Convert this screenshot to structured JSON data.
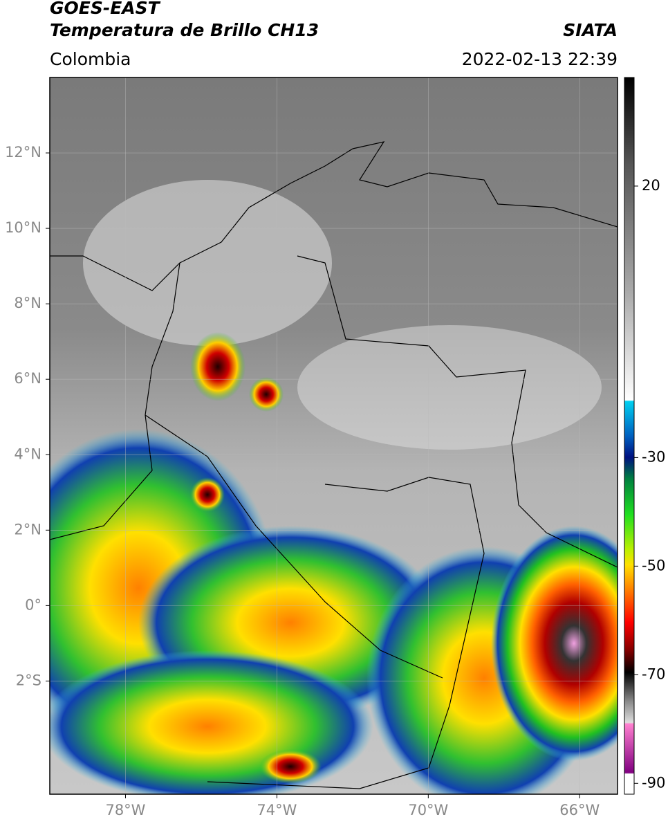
{
  "header": {
    "satellite": "GOES-EAST",
    "product": "Temperatura de Brillo CH13",
    "region": "Colombia",
    "source": "SIATA",
    "datetime": "2022-02-13 22:39"
  },
  "map": {
    "xlim": [
      -80,
      -65
    ],
    "ylim": [
      -5,
      14
    ],
    "xticks": [
      {
        "value": -78,
        "label": "78°W"
      },
      {
        "value": -74,
        "label": "74°W"
      },
      {
        "value": -70,
        "label": "70°W"
      },
      {
        "value": -66,
        "label": "66°W"
      }
    ],
    "yticks": [
      {
        "value": 12,
        "label": "12°N"
      },
      {
        "value": 10,
        "label": "10°N"
      },
      {
        "value": 8,
        "label": "8°N"
      },
      {
        "value": 6,
        "label": "6°N"
      },
      {
        "value": 4,
        "label": "4°N"
      },
      {
        "value": 2,
        "label": "2°N"
      },
      {
        "value": 0,
        "label": "0°"
      },
      {
        "value": -2,
        "label": "2°S"
      }
    ],
    "grid": true
  },
  "colorbar": {
    "lim": [
      -92,
      40
    ],
    "ticks": [
      20,
      -30,
      -50,
      -70,
      -90
    ]
  }
}
